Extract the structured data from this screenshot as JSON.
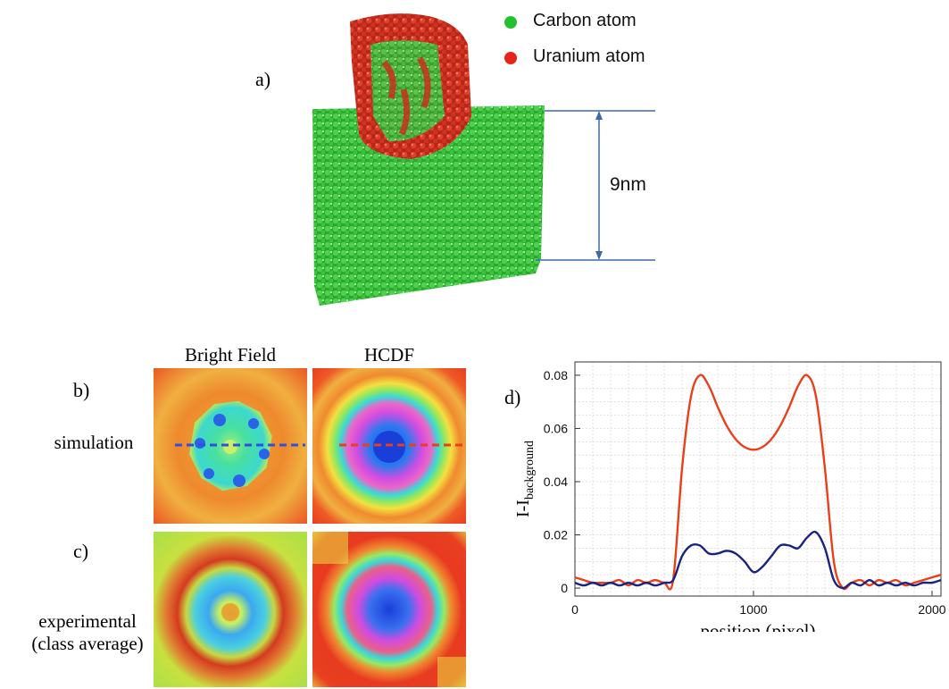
{
  "panel_a": {
    "label": "a)",
    "legend": [
      {
        "label": "Carbon atom",
        "color": "#22c22e"
      },
      {
        "label": "Uranium atom",
        "color": "#e8231a"
      }
    ],
    "dimension_label": "9nm",
    "colors": {
      "carbon": "#2fbf33",
      "uranium": "#d9341e",
      "dimension_line": "#3c6aa8"
    }
  },
  "panel_b": {
    "label": "b)",
    "row_label": "simulation",
    "col_titles": [
      "Bright Field",
      "HCDF"
    ],
    "line_colors": {
      "bright_field": "#2f4fe0",
      "hcdf": "#e8401a"
    }
  },
  "panel_c": {
    "label": "c)",
    "row_label_line1": "experimental",
    "row_label_line2": "(class average)"
  },
  "panel_d": {
    "label": "d)"
  },
  "chart_data": {
    "type": "line",
    "xlabel": "position (pixel)",
    "ylabel_main": "I-I",
    "ylabel_sub": "background",
    "xlim": [
      0,
      2050
    ],
    "ylim": [
      -0.003,
      0.085
    ],
    "xticks": [
      0,
      1000,
      2000
    ],
    "yticks": [
      0,
      0.02,
      0.04,
      0.06,
      0.08
    ],
    "ytick_labels": [
      "0",
      "0.02",
      "0.04",
      "0.06",
      "0.08"
    ],
    "grid": true,
    "series": [
      {
        "color": "#e8401a",
        "x": [
          0,
          50,
          100,
          150,
          200,
          250,
          300,
          350,
          400,
          450,
          500,
          550,
          600,
          650,
          700,
          750,
          800,
          850,
          900,
          950,
          1000,
          1050,
          1100,
          1150,
          1200,
          1250,
          1300,
          1350,
          1400,
          1450,
          1500,
          1550,
          1600,
          1650,
          1700,
          1750,
          1800,
          1850,
          1900,
          1950,
          2000,
          2050
        ],
        "y": [
          0.004,
          0.003,
          0.002,
          0.002,
          0.002,
          0.003,
          0.001,
          0.003,
          0.002,
          0.003,
          0.002,
          0.003,
          0.045,
          0.072,
          0.08,
          0.076,
          0.068,
          0.061,
          0.056,
          0.053,
          0.052,
          0.053,
          0.056,
          0.061,
          0.068,
          0.076,
          0.08,
          0.072,
          0.045,
          0.01,
          0.0,
          0.002,
          0.003,
          0.001,
          0.003,
          0.002,
          0.003,
          0.001,
          0.002,
          0.003,
          0.004,
          0.005
        ]
      },
      {
        "color": "#1a237e",
        "x": [
          0,
          50,
          100,
          150,
          200,
          250,
          300,
          350,
          400,
          450,
          500,
          550,
          600,
          650,
          700,
          750,
          800,
          850,
          900,
          950,
          1000,
          1050,
          1100,
          1150,
          1200,
          1250,
          1300,
          1350,
          1400,
          1450,
          1500,
          1550,
          1600,
          1650,
          1700,
          1750,
          1800,
          1850,
          1900,
          1950,
          2000,
          2050
        ],
        "y": [
          0.002,
          0.001,
          0.002,
          0.001,
          0.002,
          0.001,
          0.002,
          0.001,
          0.002,
          0.001,
          0.002,
          0.003,
          0.012,
          0.016,
          0.016,
          0.013,
          0.013,
          0.014,
          0.013,
          0.01,
          0.006,
          0.008,
          0.012,
          0.016,
          0.016,
          0.015,
          0.019,
          0.021,
          0.015,
          0.003,
          0.0,
          0.002,
          0.001,
          0.003,
          0.001,
          0.002,
          0.001,
          0.002,
          0.001,
          0.002,
          0.002,
          0.003
        ]
      }
    ]
  }
}
